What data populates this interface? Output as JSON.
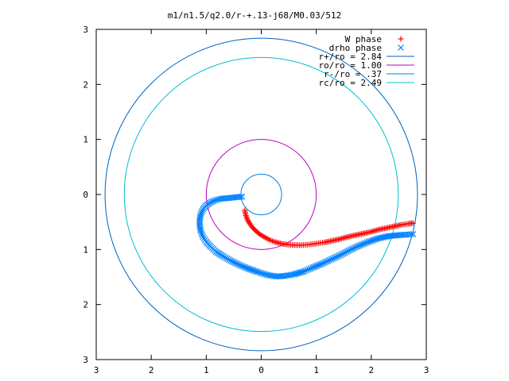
{
  "chart_data": {
    "type": "scatter",
    "title": "m1/n1.5/q2.0/r-+.13-j68/M0.03/512",
    "xlabel": "",
    "ylabel": "",
    "xlim": [
      -3,
      3
    ],
    "ylim": [
      -3,
      3
    ],
    "x_ticks": [
      -3,
      -2,
      -1,
      0,
      1,
      2,
      3
    ],
    "y_ticks": [
      -3,
      -2,
      -1,
      0,
      1,
      2,
      3
    ],
    "x_tick_labels": [
      "3",
      "2",
      "1",
      "0",
      "1",
      "2",
      "3"
    ],
    "y_tick_labels": [
      "3",
      "2",
      "1",
      "0",
      "1",
      "2",
      "3"
    ],
    "grid": false,
    "legend_position": "top-right",
    "colors": {
      "w_phase": "#ff0000",
      "drho_phase": "#0080ff",
      "r_plus": "#0060c0",
      "r_o": "#c000c0",
      "r_minus": "#0080e0",
      "r_c": "#00c0d0"
    },
    "series": [
      {
        "name": "W phase",
        "kind": "points",
        "marker": "plus",
        "points": [
          [
            -0.3,
            -0.29
          ],
          [
            -0.28,
            -0.38
          ],
          [
            -0.25,
            -0.46
          ],
          [
            -0.21,
            -0.53
          ],
          [
            -0.16,
            -0.6
          ],
          [
            -0.1,
            -0.66
          ],
          [
            -0.03,
            -0.72
          ],
          [
            0.05,
            -0.77
          ],
          [
            0.14,
            -0.82
          ],
          [
            0.24,
            -0.86
          ],
          [
            0.35,
            -0.89
          ],
          [
            0.47,
            -0.91
          ],
          [
            0.6,
            -0.92
          ],
          [
            0.73,
            -0.92
          ],
          [
            0.87,
            -0.91
          ],
          [
            1.01,
            -0.89
          ],
          [
            1.15,
            -0.87
          ],
          [
            1.29,
            -0.84
          ],
          [
            1.43,
            -0.81
          ],
          [
            1.57,
            -0.77
          ],
          [
            1.71,
            -0.74
          ],
          [
            1.85,
            -0.71
          ],
          [
            1.99,
            -0.68
          ],
          [
            2.13,
            -0.64
          ],
          [
            2.27,
            -0.61
          ],
          [
            2.41,
            -0.58
          ],
          [
            2.55,
            -0.55
          ],
          [
            2.68,
            -0.53
          ],
          [
            2.76,
            -0.52
          ]
        ]
      },
      {
        "name": "drho phase",
        "kind": "points",
        "marker": "cross",
        "points": [
          [
            -0.35,
            -0.04
          ],
          [
            -0.45,
            -0.05
          ],
          [
            -0.55,
            -0.06
          ],
          [
            -0.65,
            -0.07
          ],
          [
            -0.75,
            -0.08
          ],
          [
            -0.85,
            -0.11
          ],
          [
            -0.93,
            -0.15
          ],
          [
            -1.0,
            -0.2
          ],
          [
            -1.06,
            -0.27
          ],
          [
            -1.1,
            -0.36
          ],
          [
            -1.12,
            -0.46
          ],
          [
            -1.12,
            -0.57
          ],
          [
            -1.1,
            -0.67
          ],
          [
            -1.06,
            -0.77
          ],
          [
            -1.0,
            -0.86
          ],
          [
            -0.92,
            -0.95
          ],
          [
            -0.82,
            -1.04
          ],
          [
            -0.7,
            -1.12
          ],
          [
            -0.56,
            -1.2
          ],
          [
            -0.4,
            -1.28
          ],
          [
            -0.23,
            -1.35
          ],
          [
            -0.06,
            -1.41
          ],
          [
            0.1,
            -1.46
          ],
          [
            0.27,
            -1.49
          ],
          [
            0.43,
            -1.48
          ],
          [
            0.6,
            -1.45
          ],
          [
            0.77,
            -1.4
          ],
          [
            0.93,
            -1.33
          ],
          [
            1.1,
            -1.26
          ],
          [
            1.27,
            -1.18
          ],
          [
            1.44,
            -1.1
          ],
          [
            1.61,
            -1.01
          ],
          [
            1.78,
            -0.93
          ],
          [
            1.95,
            -0.86
          ],
          [
            2.12,
            -0.8
          ],
          [
            2.3,
            -0.76
          ],
          [
            2.48,
            -0.74
          ],
          [
            2.65,
            -0.73
          ],
          [
            2.76,
            -0.72
          ]
        ]
      },
      {
        "name": "r+/ro = 2.84",
        "kind": "circle",
        "radius": 2.84
      },
      {
        "name": "ro/ro = 1.00",
        "kind": "circle",
        "radius": 1.0
      },
      {
        "name": "r-/ro = .37",
        "kind": "circle",
        "radius": 0.37
      },
      {
        "name": "rc/ro = 2.49",
        "kind": "circle",
        "radius": 2.49
      }
    ]
  }
}
